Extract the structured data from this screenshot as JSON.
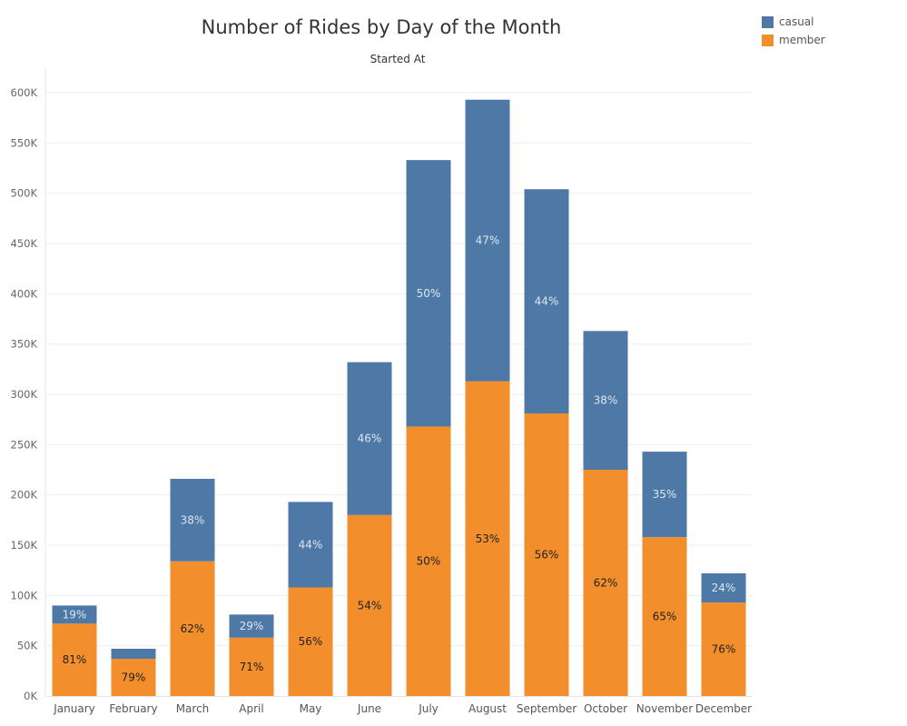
{
  "chart_data": {
    "type": "bar",
    "stacked": true,
    "title": "Number of Rides by Day of the Month",
    "subtitle": "Started At",
    "xlabel": "",
    "ylabel": "",
    "ylim": [
      0,
      600000
    ],
    "yticks": [
      0,
      50000,
      100000,
      150000,
      200000,
      250000,
      300000,
      350000,
      400000,
      450000,
      500000,
      550000,
      600000
    ],
    "ytick_labels": [
      "0K",
      "50K",
      "100K",
      "150K",
      "200K",
      "250K",
      "300K",
      "350K",
      "400K",
      "450K",
      "500K",
      "550K",
      "600K"
    ],
    "grid": true,
    "legend_position": "top-right",
    "categories": [
      "January",
      "February",
      "March",
      "April",
      "May",
      "June",
      "July",
      "August",
      "September",
      "October",
      "November",
      "December"
    ],
    "series": [
      {
        "name": "member",
        "color": "#F28E2B",
        "values": [
          72000,
          37000,
          134000,
          58000,
          108000,
          180000,
          268000,
          313000,
          281000,
          225000,
          158000,
          93000
        ],
        "labels": [
          "81%",
          "79%",
          "62%",
          "71%",
          "56%",
          "54%",
          "50%",
          "53%",
          "56%",
          "62%",
          "65%",
          "76%"
        ],
        "label_color": "#222222"
      },
      {
        "name": "casual",
        "color": "#4E79A7",
        "values": [
          18000,
          10000,
          82000,
          23000,
          85000,
          152000,
          265000,
          280000,
          223000,
          138000,
          85000,
          29000
        ],
        "labels": [
          "19%",
          "",
          "38%",
          "29%",
          "44%",
          "46%",
          "50%",
          "47%",
          "44%",
          "38%",
          "35%",
          "24%"
        ],
        "label_color": "#DDE6F0"
      }
    ]
  }
}
